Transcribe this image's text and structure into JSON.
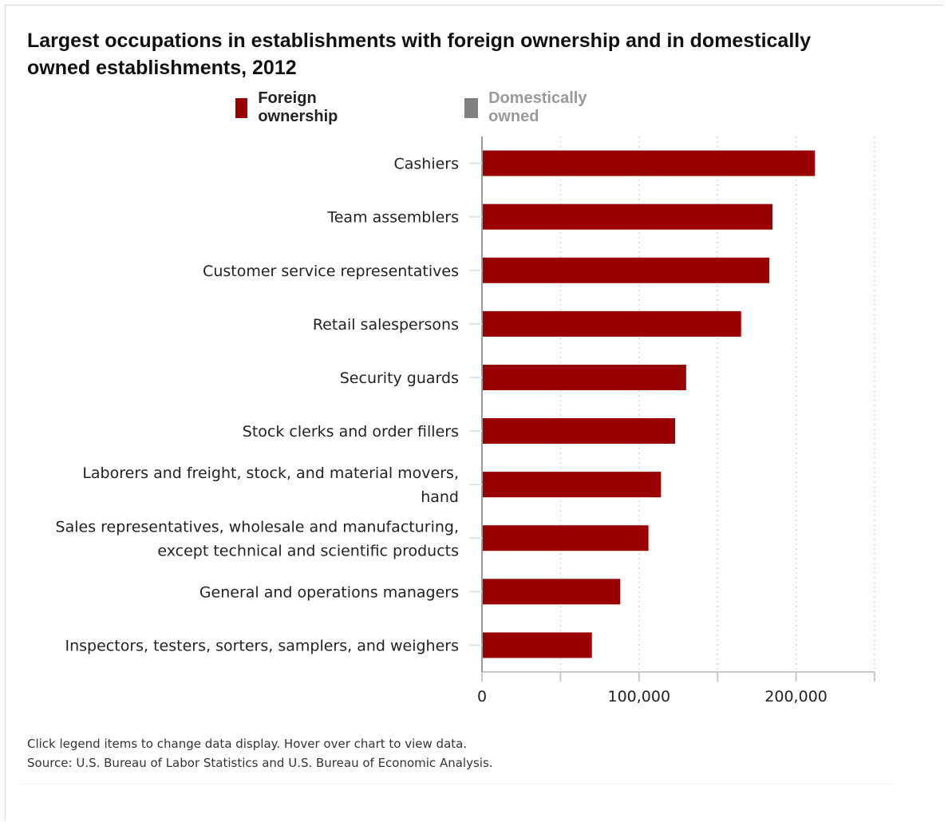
{
  "chart_data": {
    "type": "bar",
    "orientation": "horizontal",
    "title": "Largest occupations in establishments with foreign ownership and in domestically owned establishments, 2012",
    "categories": [
      "Cashiers",
      "Team assemblers",
      "Customer service representatives",
      "Retail salespersons",
      "Security guards",
      "Stock clerks and order fillers",
      "Laborers and freight, stock, and material movers, hand",
      "Sales representatives, wholesale and manufacturing, except technical and scientific products",
      "General and operations managers",
      "Inspectors, testers, sorters, samplers, and weighers"
    ],
    "category_lines": [
      [
        "Cashiers"
      ],
      [
        "Team assemblers"
      ],
      [
        "Customer service representatives"
      ],
      [
        "Retail salespersons"
      ],
      [
        "Security guards"
      ],
      [
        "Stock clerks and order fillers"
      ],
      [
        "Laborers and freight, stock, and material movers,",
        "hand"
      ],
      [
        "Sales representatives, wholesale and manufacturing,",
        "except technical and scientific products"
      ],
      [
        "General and operations managers"
      ],
      [
        "Inspectors, testers, sorters, samplers, and weighers"
      ]
    ],
    "series": [
      {
        "name": "Foreign ownership",
        "color": "#990000",
        "visible": true,
        "values": [
          212000,
          185000,
          183000,
          165000,
          130000,
          123000,
          114000,
          106000,
          88000,
          70000
        ]
      },
      {
        "name": "Domestically owned",
        "color": "#808080",
        "visible": false
      }
    ],
    "xlim": [
      0,
      250000
    ],
    "x_ticks": [
      0,
      50000,
      100000,
      150000,
      200000,
      250000
    ],
    "x_tick_labels": [
      "0",
      "",
      "100,000",
      "",
      "200,000",
      ""
    ],
    "grid": "vertical dotted",
    "legend_position": "top",
    "inactive_legend_color": "#999999"
  },
  "footer": {
    "note": "Click legend items to change data display. Hover over chart to view data.",
    "source": "Source: U.S. Bureau of Labor Statistics and U.S. Bureau of Economic Analysis."
  }
}
